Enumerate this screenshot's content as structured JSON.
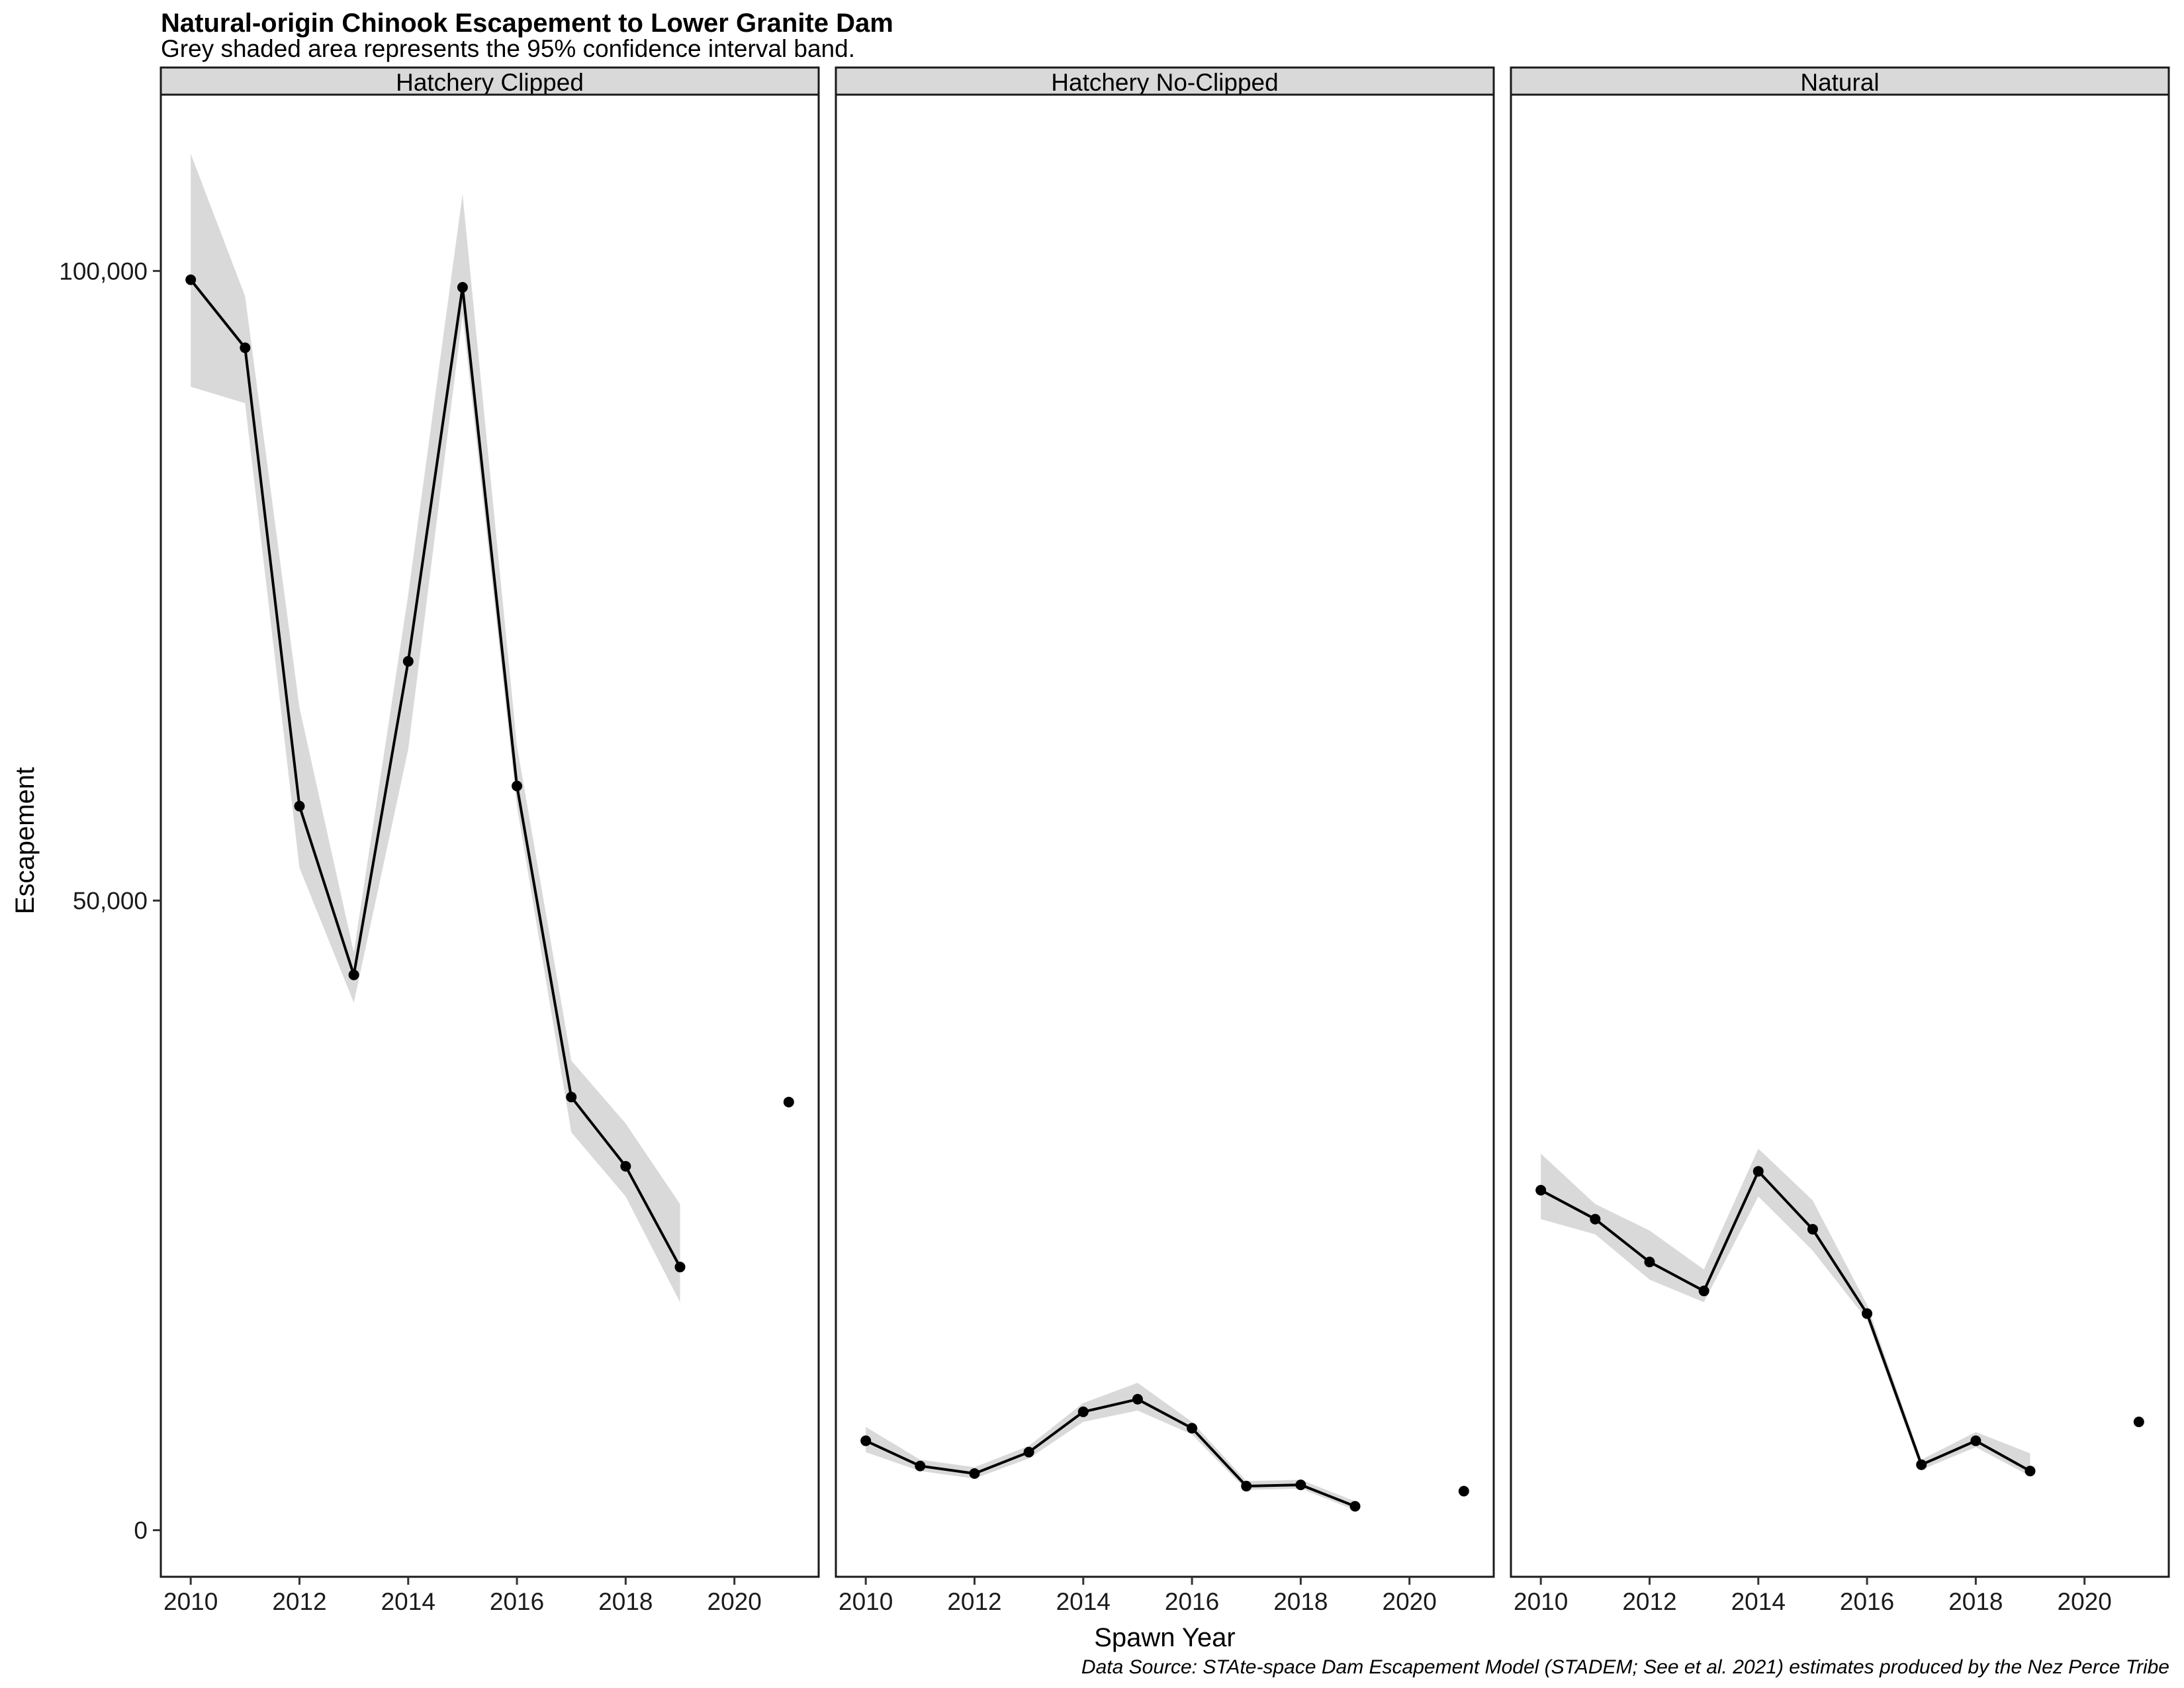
{
  "chart_data": {
    "type": "line",
    "title": "Natural-origin Chinook Escapement to Lower Granite Dam",
    "subtitle": "Grey shaded area represents the 95% confidence interval band.",
    "xlabel": "Spawn Year",
    "ylabel": "Escapement",
    "caption": "Data Source: STAte-space Dam Escapement Model (STADEM; See et al. 2021) estimates produced by the Nez Perce Tribe",
    "xlim": [
      2009.45,
      2021.55
    ],
    "ylim": [
      -3700,
      114000
    ],
    "x_ticks": [
      2010,
      2012,
      2014,
      2016,
      2018,
      2020
    ],
    "x_tick_labels": [
      "2010",
      "2012",
      "2014",
      "2016",
      "2018",
      "2020"
    ],
    "y_ticks": [
      0,
      50000,
      100000
    ],
    "y_tick_labels": [
      "0",
      "50,000",
      "100,000"
    ],
    "grid": false,
    "ribbon_color": "#d9d9d9",
    "line_color": "#000000",
    "point_color": "#000000",
    "panels": [
      {
        "name": "Hatchery Clipped",
        "x": [
          2010,
          2011,
          2012,
          2013,
          2014,
          2015,
          2016,
          2017,
          2018,
          2019
        ],
        "y": [
          99300,
          93900,
          57500,
          44100,
          69000,
          98700,
          59100,
          34400,
          28900,
          20900
        ],
        "lower": [
          90800,
          89500,
          52600,
          41900,
          62000,
          96500,
          57500,
          31600,
          26500,
          18100
        ],
        "upper": [
          109300,
          98000,
          65300,
          45900,
          74300,
          106100,
          62300,
          37300,
          32300,
          25900
        ],
        "extra_point": {
          "x": 2021,
          "y": 34000
        }
      },
      {
        "name": "Hatchery No-Clipped",
        "x": [
          2010,
          2011,
          2012,
          2013,
          2014,
          2015,
          2016,
          2017,
          2018,
          2019
        ],
        "y": [
          7100,
          5100,
          4500,
          6200,
          9400,
          10400,
          8100,
          3500,
          3600,
          1900
        ],
        "lower": [
          6200,
          4700,
          4100,
          5700,
          8600,
          9500,
          7600,
          3200,
          3300,
          1600
        ],
        "upper": [
          8200,
          5600,
          5000,
          6700,
          10100,
          11700,
          8600,
          3900,
          4000,
          2300
        ],
        "extra_point": {
          "x": 2021,
          "y": 3100
        }
      },
      {
        "name": "Natural",
        "x": [
          2010,
          2011,
          2012,
          2013,
          2014,
          2015,
          2016,
          2017,
          2018,
          2019
        ],
        "y": [
          27000,
          24700,
          21300,
          19000,
          28500,
          23900,
          17200,
          5200,
          7100,
          4700
        ],
        "lower": [
          24700,
          23500,
          19900,
          18100,
          26500,
          22200,
          16700,
          4800,
          6600,
          4300
        ],
        "upper": [
          29900,
          25900,
          23800,
          20700,
          30300,
          26200,
          17900,
          5600,
          7800,
          6100
        ],
        "extra_point": {
          "x": 2021,
          "y": 8600
        }
      }
    ]
  }
}
